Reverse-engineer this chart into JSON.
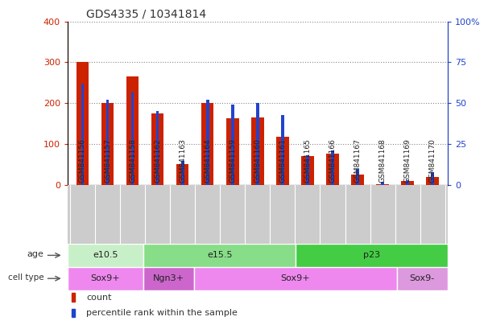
{
  "title": "GDS4335 / 10341814",
  "samples": [
    "GSM841156",
    "GSM841157",
    "GSM841158",
    "GSM841162",
    "GSM841163",
    "GSM841164",
    "GSM841159",
    "GSM841160",
    "GSM841161",
    "GSM841165",
    "GSM841166",
    "GSM841167",
    "GSM841168",
    "GSM841169",
    "GSM841170"
  ],
  "count_values": [
    300,
    200,
    265,
    175,
    52,
    200,
    163,
    165,
    118,
    70,
    77,
    25,
    3,
    10,
    20
  ],
  "percentile_values": [
    62,
    52,
    57,
    45,
    15,
    52,
    49,
    50,
    43,
    18,
    21,
    10,
    2,
    3,
    8
  ],
  "age_groups": [
    {
      "label": "e10.5",
      "start": 0,
      "end": 3,
      "color": "#c8f0c8"
    },
    {
      "label": "e15.5",
      "start": 3,
      "end": 9,
      "color": "#88dd88"
    },
    {
      "label": "p23",
      "start": 9,
      "end": 15,
      "color": "#44cc44"
    }
  ],
  "cell_type_groups": [
    {
      "label": "Sox9+",
      "start": 0,
      "end": 3,
      "color": "#ee88ee"
    },
    {
      "label": "Ngn3+",
      "start": 3,
      "end": 5,
      "color": "#cc66cc"
    },
    {
      "label": "Sox9+",
      "start": 5,
      "end": 13,
      "color": "#ee88ee"
    },
    {
      "label": "Sox9-",
      "start": 13,
      "end": 15,
      "color": "#dd99dd"
    }
  ],
  "ylim_left": [
    0,
    400
  ],
  "ylim_right": [
    0,
    100
  ],
  "yticks_left": [
    0,
    100,
    200,
    300,
    400
  ],
  "ytick_labels_left": [
    "0",
    "100",
    "200",
    "300",
    "400"
  ],
  "yticks_right": [
    0,
    25,
    50,
    75,
    100
  ],
  "ytick_labels_right": [
    "0",
    "25",
    "50",
    "75",
    "100%"
  ],
  "bar_color_red": "#cc2200",
  "bar_color_blue": "#2244cc",
  "grid_color": "#888888",
  "bg_color": "#ffffff",
  "tick_label_color_left": "#cc2200",
  "tick_label_color_right": "#2244cc",
  "bar_width": 0.5,
  "blue_bar_width": 0.12,
  "legend_count_label": "count",
  "legend_pct_label": "percentile rank within the sample",
  "xtick_bg_color": "#cccccc",
  "age_label_left": "age",
  "cell_type_label_left": "cell type"
}
